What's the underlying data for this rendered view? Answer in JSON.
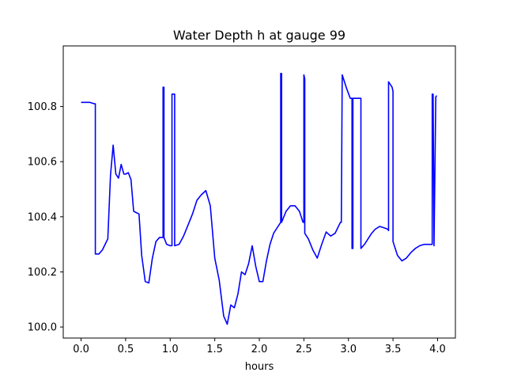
{
  "chart_data": {
    "type": "line",
    "title": "Water Depth h at gauge 99",
    "xlabel": "hours",
    "ylabel": "",
    "xlim": [
      -0.2,
      4.2
    ],
    "ylim": [
      99.96,
      101.02
    ],
    "xticks": [
      0.0,
      0.5,
      1.0,
      1.5,
      2.0,
      2.5,
      3.0,
      3.5,
      4.0
    ],
    "xtick_labels": [
      "0.0",
      "0.5",
      "1.0",
      "1.5",
      "2.0",
      "2.5",
      "3.0",
      "3.5",
      "4.0"
    ],
    "yticks": [
      100.0,
      100.2,
      100.4,
      100.6,
      100.8
    ],
    "ytick_labels": [
      "100.0",
      "100.2",
      "100.4",
      "100.6",
      "100.8"
    ],
    "grid": false,
    "legend": "none",
    "series": [
      {
        "color": "#0000ff",
        "x": [
          0.0,
          0.05,
          0.1,
          0.15,
          0.16,
          0.16,
          0.2,
          0.24,
          0.27,
          0.3,
          0.33,
          0.36,
          0.39,
          0.42,
          0.45,
          0.48,
          0.5,
          0.53,
          0.56,
          0.59,
          0.62,
          0.65,
          0.68,
          0.72,
          0.76,
          0.8,
          0.84,
          0.88,
          0.92,
          0.92,
          0.93,
          0.93,
          0.96,
          1.0,
          1.02,
          1.02,
          1.05,
          1.05,
          1.1,
          1.15,
          1.2,
          1.25,
          1.3,
          1.35,
          1.4,
          1.45,
          1.5,
          1.55,
          1.6,
          1.64,
          1.68,
          1.72,
          1.76,
          1.8,
          1.84,
          1.88,
          1.92,
          1.96,
          2.0,
          2.04,
          2.08,
          2.12,
          2.16,
          2.2,
          2.24,
          2.24,
          2.25,
          2.25,
          2.3,
          2.35,
          2.4,
          2.45,
          2.49,
          2.5,
          2.5,
          2.51,
          2.51,
          2.55,
          2.6,
          2.65,
          2.7,
          2.75,
          2.8,
          2.85,
          2.88,
          2.91,
          2.92,
          2.93,
          2.93,
          2.98,
          3.02,
          3.04,
          3.04,
          3.05,
          3.05,
          3.1,
          3.14,
          3.14,
          3.18,
          3.22,
          3.26,
          3.3,
          3.35,
          3.4,
          3.44,
          3.45,
          3.45,
          3.49,
          3.5,
          3.5,
          3.55,
          3.6,
          3.65,
          3.7,
          3.75,
          3.8,
          3.85,
          3.9,
          3.94,
          3.94,
          3.95,
          3.96,
          3.96,
          3.98,
          3.98,
          3.99
        ],
        "y": [
          100.815,
          100.815,
          100.815,
          100.81,
          100.81,
          100.265,
          100.265,
          100.28,
          100.3,
          100.32,
          100.55,
          100.66,
          100.555,
          100.54,
          100.59,
          100.555,
          100.555,
          100.56,
          100.535,
          100.42,
          100.415,
          100.41,
          100.26,
          100.165,
          100.16,
          100.25,
          100.31,
          100.325,
          100.325,
          100.87,
          100.87,
          100.325,
          100.3,
          100.295,
          100.295,
          100.845,
          100.845,
          100.295,
          100.3,
          100.33,
          100.37,
          100.41,
          100.46,
          100.48,
          100.495,
          100.44,
          100.25,
          100.17,
          100.04,
          100.01,
          100.08,
          100.07,
          100.12,
          100.2,
          100.19,
          100.23,
          100.295,
          100.22,
          100.165,
          100.165,
          100.24,
          100.3,
          100.34,
          100.36,
          100.38,
          100.92,
          100.92,
          100.38,
          100.42,
          100.44,
          100.44,
          100.42,
          100.38,
          100.38,
          100.915,
          100.9,
          100.34,
          100.32,
          100.28,
          100.25,
          100.3,
          100.345,
          100.33,
          100.34,
          100.36,
          100.38,
          100.38,
          100.915,
          100.915,
          100.865,
          100.83,
          100.83,
          100.285,
          100.285,
          100.83,
          100.83,
          100.83,
          100.285,
          100.3,
          100.32,
          100.34,
          100.355,
          100.365,
          100.36,
          100.355,
          100.35,
          100.89,
          100.87,
          100.855,
          100.31,
          100.26,
          100.24,
          100.25,
          100.27,
          100.285,
          100.295,
          100.3,
          100.3,
          100.3,
          100.845,
          100.845,
          100.295,
          100.295,
          100.835,
          100.835,
          100.84
        ]
      }
    ]
  }
}
